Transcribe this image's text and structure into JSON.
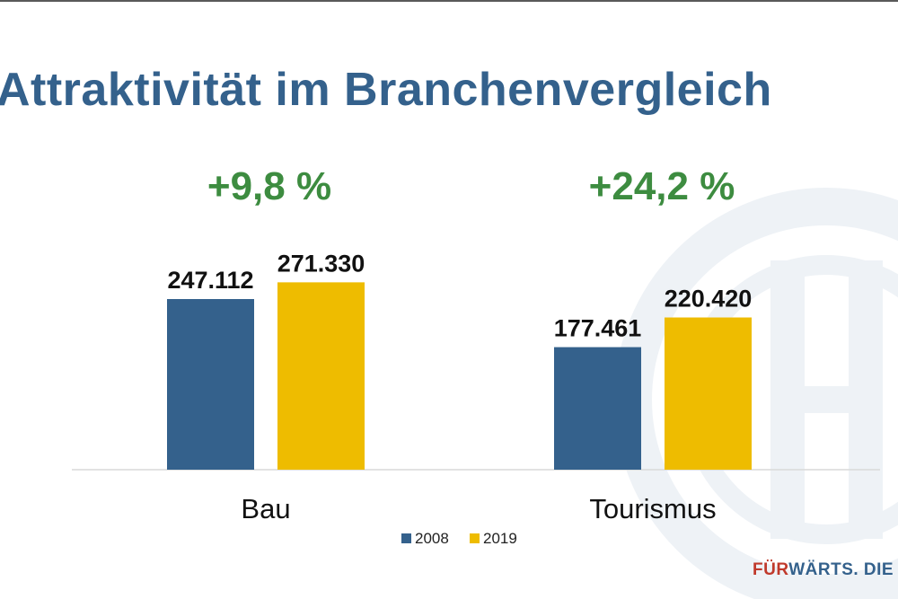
{
  "title": "Attraktivität im Branchenvergleich",
  "colors": {
    "title": "#34618c",
    "series_2008": "#34618c",
    "series_2019": "#eebc00",
    "growth": "#3d8c40",
    "brand_red": "#c0392b",
    "brand_blue": "#34618c"
  },
  "logo": {
    "text_red": "FÜR",
    "text_blue": "WÄRTS. DIE ÖHV"
  },
  "chart_data": {
    "type": "bar",
    "categories": [
      "Bau",
      "Tourismus"
    ],
    "series": [
      {
        "name": "2008",
        "values": [
          247112,
          177461
        ],
        "labels": [
          "247.112",
          "177.461"
        ]
      },
      {
        "name": "2019",
        "values": [
          271330,
          220420
        ],
        "labels": [
          "271.330",
          "220.420"
        ]
      }
    ],
    "annotations": [
      "+9,8 %",
      "+24,2 %"
    ],
    "legend_position": "bottom",
    "grid": false,
    "ylim": [
      0,
      290000
    ]
  }
}
